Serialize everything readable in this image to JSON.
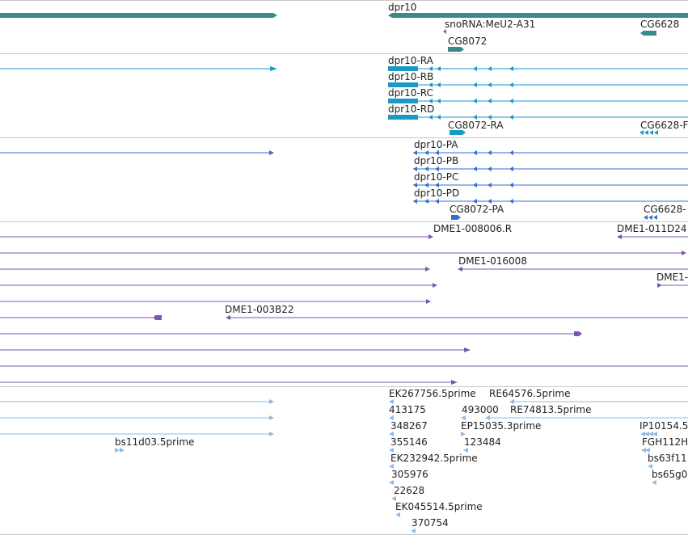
{
  "colors": {
    "gene": "#3a8a8a",
    "transcript": "#1899c6",
    "protein": "#2f6fcf",
    "probe": "#7b55b0",
    "est": "#8cbce6",
    "separator": "#c8c8c8",
    "text": "#222222"
  },
  "tracks": {
    "genes": {
      "labels": [
        "dpr10",
        "snoRNA:MeU2-A31",
        "CG8072",
        "CG6628"
      ]
    },
    "transcripts": {
      "labels": [
        "dpr10-RA",
        "dpr10-RB",
        "dpr10-RC",
        "dpr10-RD",
        "CG8072-RA",
        "CG6628-F"
      ]
    },
    "proteins": {
      "labels": [
        "dpr10-PA",
        "dpr10-PB",
        "dpr10-PC",
        "dpr10-PD",
        "CG8072-PA",
        "CG6628-"
      ]
    },
    "probes": {
      "labels": [
        "DME1-008006.R",
        "DME1-011D24",
        "DME1-016008",
        "DME1-",
        "DME1-003B22"
      ]
    },
    "ests": {
      "labels": [
        "EK267756.5prime",
        "RE64576.5prime",
        "413175",
        "493000",
        "RE74813.5prime",
        "348267",
        "EP15035.3prime",
        "IP10154.5",
        "bs11d03.5prime",
        "355146",
        "123484",
        "FGH112H",
        "EK232942.5prime",
        "bs63f11",
        "305976",
        "bs65g0",
        "22628",
        "EK045514.5prime",
        "370754"
      ]
    }
  }
}
